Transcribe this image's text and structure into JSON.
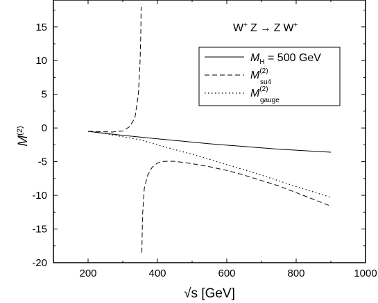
{
  "chart_data": {
    "type": "line",
    "annotation": {
      "W1": "W",
      "Z1": "Z",
      "arrow": "→",
      "Z2": "Z",
      "W2": "W",
      "plus": "+"
    },
    "xlabel": "√s [GeV]",
    "ylabel": {
      "base": "M",
      "sup": "(2)"
    },
    "xlim": [
      100,
      1000
    ],
    "ylim": [
      -20,
      19
    ],
    "xticks": [
      "200",
      "400",
      "600",
      "800",
      "1000"
    ],
    "yticks": [
      "15",
      "10",
      "5",
      "0",
      "-5",
      "-10",
      "-15",
      "-20"
    ],
    "xtick_values": [
      200,
      400,
      600,
      800,
      1000
    ],
    "ytick_values": [
      15,
      10,
      5,
      0,
      -5,
      -10,
      -15,
      -20
    ],
    "grid": false,
    "legend_position": "top-right",
    "series": [
      {
        "style": "solid",
        "legend": {
          "base": "M",
          "sub": "H",
          "rest": " = 500 GeV"
        },
        "segments": [
          [
            [
              200,
              -0.5
            ],
            [
              250,
              -0.8
            ],
            [
              300,
              -1.1
            ],
            [
              350,
              -1.35
            ],
            [
              400,
              -1.6
            ],
            [
              450,
              -1.85
            ],
            [
              500,
              -2.1
            ],
            [
              550,
              -2.35
            ],
            [
              600,
              -2.55
            ],
            [
              650,
              -2.75
            ],
            [
              700,
              -2.95
            ],
            [
              750,
              -3.15
            ],
            [
              800,
              -3.3
            ],
            [
              850,
              -3.45
            ],
            [
              900,
              -3.6
            ]
          ]
        ]
      },
      {
        "style": "dashed",
        "legend": {
          "base": "M",
          "sup": "(2)",
          "sub": "su4"
        },
        "segments": [
          [
            [
              200,
              -0.5
            ],
            [
              240,
              -0.55
            ],
            [
              270,
              -0.6
            ],
            [
              300,
              -0.45
            ],
            [
              320,
              0.2
            ],
            [
              335,
              1.5
            ],
            [
              345,
              5
            ],
            [
              350,
              10
            ],
            [
              352,
              14
            ],
            [
              353,
              18
            ]
          ],
          [
            [
              355,
              -18.5
            ],
            [
              357,
              -13
            ],
            [
              362,
              -9
            ],
            [
              372,
              -7
            ],
            [
              385,
              -5.8
            ],
            [
              400,
              -5.2
            ],
            [
              420,
              -4.95
            ],
            [
              450,
              -4.95
            ],
            [
              500,
              -5.3
            ],
            [
              550,
              -5.75
            ],
            [
              600,
              -6.3
            ],
            [
              650,
              -7
            ],
            [
              700,
              -7.8
            ],
            [
              750,
              -8.6
            ],
            [
              800,
              -9.6
            ],
            [
              850,
              -10.6
            ],
            [
              900,
              -11.6
            ]
          ]
        ]
      },
      {
        "style": "dotted",
        "legend": {
          "base": "M",
          "sup": "(2)",
          "sub": "gauge"
        },
        "segments": [
          [
            [
              200,
              -0.5
            ],
            [
              250,
              -0.85
            ],
            [
              300,
              -1.3
            ],
            [
              350,
              -1.75
            ],
            [
              400,
              -2.5
            ],
            [
              450,
              -3.2
            ],
            [
              500,
              -3.9
            ],
            [
              550,
              -4.65
            ],
            [
              600,
              -5.45
            ],
            [
              650,
              -6.2
            ],
            [
              700,
              -7.0
            ],
            [
              750,
              -7.85
            ],
            [
              800,
              -8.7
            ],
            [
              850,
              -9.5
            ],
            [
              900,
              -10.3
            ]
          ]
        ]
      }
    ]
  }
}
